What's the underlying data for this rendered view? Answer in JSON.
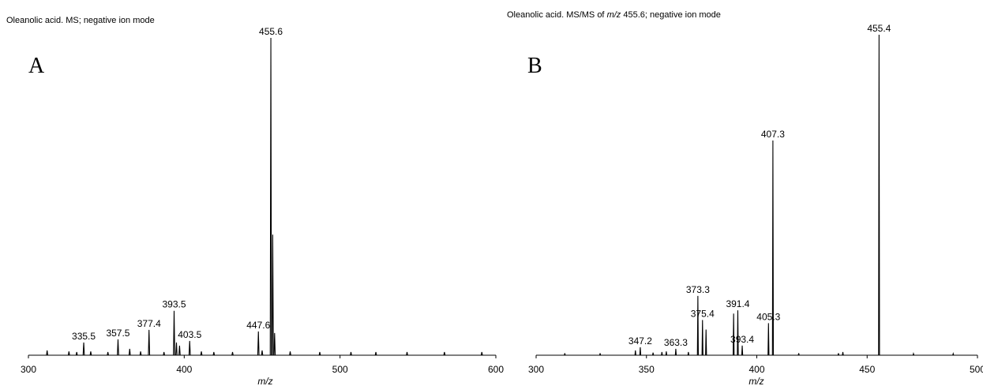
{
  "chart_data": [
    {
      "type": "line",
      "panel_letter": "A",
      "title": "Oleanolic acid. MS; negative ion mode",
      "title_italic_part": "",
      "title_suffix": "",
      "xlabel": "m/z",
      "ylabel": "",
      "xlim": [
        300,
        600
      ],
      "ylim": [
        0,
        100
      ],
      "xticks": [
        300,
        400,
        500,
        600
      ],
      "grid": false,
      "peaks": [
        {
          "x": 312,
          "y": 1.5
        },
        {
          "x": 326,
          "y": 1.2
        },
        {
          "x": 331,
          "y": 1.0
        },
        {
          "x": 335.5,
          "y": 4,
          "label": "335.5"
        },
        {
          "x": 340,
          "y": 1.2
        },
        {
          "x": 351,
          "y": 1.0
        },
        {
          "x": 357.5,
          "y": 5,
          "label": "357.5"
        },
        {
          "x": 365,
          "y": 2
        },
        {
          "x": 372,
          "y": 1.2
        },
        {
          "x": 377.4,
          "y": 8,
          "label": "377.4"
        },
        {
          "x": 387,
          "y": 1.0
        },
        {
          "x": 393.5,
          "y": 14,
          "label": "393.5"
        },
        {
          "x": 395,
          "y": 4
        },
        {
          "x": 397,
          "y": 3
        },
        {
          "x": 403.5,
          "y": 4.5,
          "label": "403.5"
        },
        {
          "x": 411,
          "y": 1.2
        },
        {
          "x": 419,
          "y": 1.0
        },
        {
          "x": 431,
          "y": 1.0
        },
        {
          "x": 447.6,
          "y": 7.5,
          "label": "447.6"
        },
        {
          "x": 450,
          "y": 1.5
        },
        {
          "x": 455.6,
          "y": 100,
          "label": "455.6"
        },
        {
          "x": 456.8,
          "y": 38
        },
        {
          "x": 458,
          "y": 7
        },
        {
          "x": 468,
          "y": 1.2
        },
        {
          "x": 487,
          "y": 1.0
        },
        {
          "x": 507,
          "y": 1.0
        },
        {
          "x": 523,
          "y": 1.0
        },
        {
          "x": 543,
          "y": 1.0
        },
        {
          "x": 567,
          "y": 1.0
        },
        {
          "x": 591,
          "y": 1.0
        }
      ]
    },
    {
      "type": "line",
      "panel_letter": "B",
      "title": "Oleanolic acid. MS/MS of ",
      "title_italic_part": "m/z",
      "title_suffix": " 455.6; negative ion mode",
      "xlabel": "m/z",
      "ylabel": "",
      "xlim": [
        300,
        500
      ],
      "ylim": [
        0,
        100
      ],
      "xticks": [
        300,
        350,
        400,
        450,
        500
      ],
      "grid": false,
      "peaks": [
        {
          "x": 313,
          "y": 0.6
        },
        {
          "x": 329,
          "y": 0.6
        },
        {
          "x": 345,
          "y": 1.5
        },
        {
          "x": 347.2,
          "y": 2.5,
          "label": "347.2"
        },
        {
          "x": 353,
          "y": 0.8
        },
        {
          "x": 357,
          "y": 1.0
        },
        {
          "x": 359,
          "y": 1.2
        },
        {
          "x": 363.3,
          "y": 2,
          "label": "363.3"
        },
        {
          "x": 369,
          "y": 1.0
        },
        {
          "x": 373.3,
          "y": 18.5,
          "label": "373.3"
        },
        {
          "x": 375.4,
          "y": 11,
          "label": "375.4"
        },
        {
          "x": 377,
          "y": 8
        },
        {
          "x": 389.5,
          "y": 13
        },
        {
          "x": 391.4,
          "y": 14,
          "label": "391.4"
        },
        {
          "x": 393.4,
          "y": 3,
          "label": "393.4"
        },
        {
          "x": 405.3,
          "y": 10,
          "label": "405.3"
        },
        {
          "x": 407.3,
          "y": 67,
          "label": "407.3"
        },
        {
          "x": 419,
          "y": 0.6
        },
        {
          "x": 437,
          "y": 0.6
        },
        {
          "x": 439,
          "y": 1.0
        },
        {
          "x": 455.4,
          "y": 100,
          "label": "455.4"
        },
        {
          "x": 471,
          "y": 0.5
        },
        {
          "x": 489,
          "y": 0.5
        }
      ]
    }
  ]
}
